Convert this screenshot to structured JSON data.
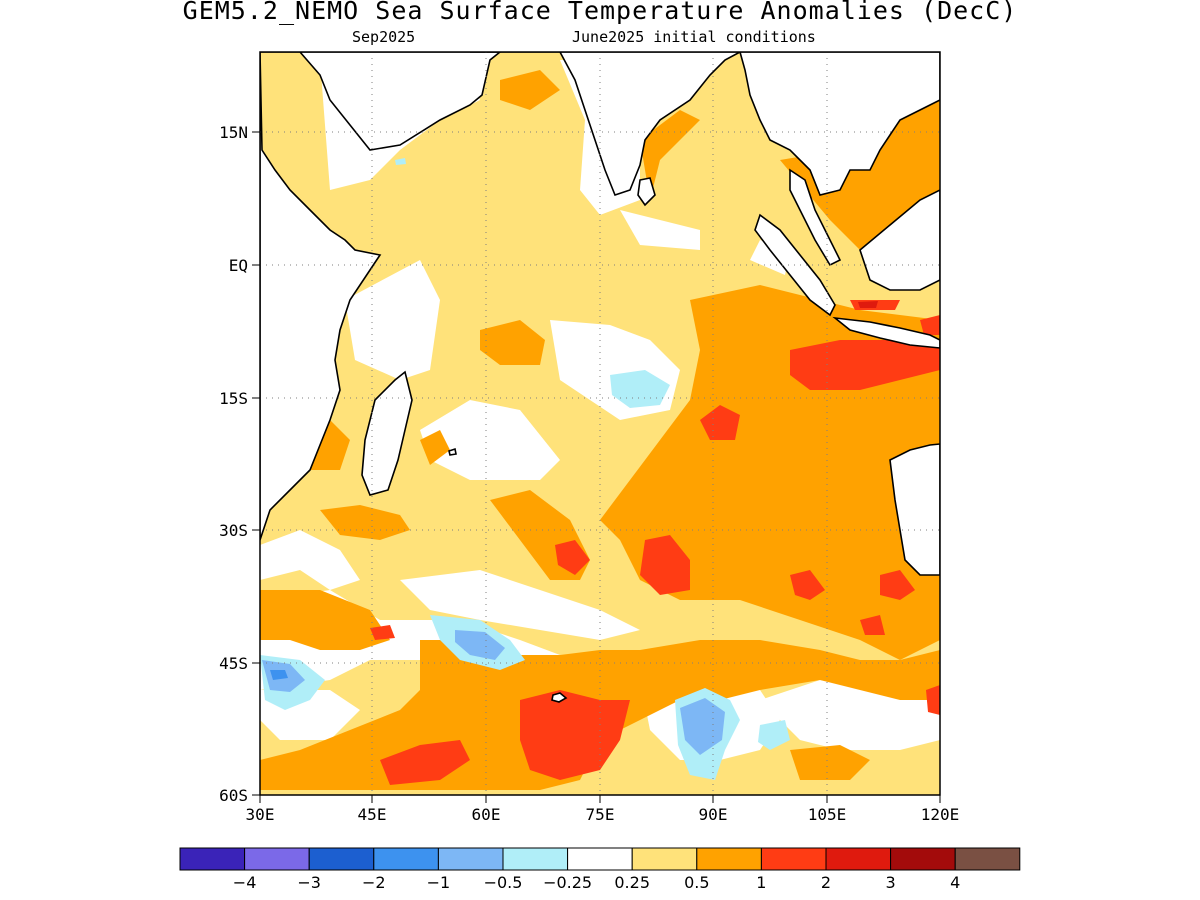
{
  "title": "GEM5.2_NEMO Sea Surface Temperature Anomalies (DecC)",
  "subtitle_left": "Sep2025",
  "subtitle_right": "June2025 initial conditions",
  "map": {
    "region": "Indian Ocean",
    "lon_range": [
      "30E",
      "120E"
    ],
    "lat_range": [
      "60S",
      "20N"
    ],
    "x_ticks": [
      "30E",
      "45E",
      "60E",
      "75E",
      "90E",
      "105E",
      "120E"
    ],
    "y_ticks": [
      "15N",
      "EQ",
      "15S",
      "30S",
      "45S",
      "60S"
    ],
    "gridlines": "dotted"
  },
  "colorbar": {
    "colors": [
      "#3a23b8",
      "#7b69e8",
      "#1c5fd0",
      "#3d92ef",
      "#7db7f5",
      "#b0eef8",
      "#ffffff",
      "#ffe27a",
      "#ffa200",
      "#ff3c14",
      "#df1a0e",
      "#a30b0b",
      "#7a5043"
    ],
    "labels": [
      "−4",
      "−3",
      "−2",
      "−1",
      "−0.5",
      "−0.25",
      "0.25",
      "0.5",
      "1",
      "2",
      "3",
      "4"
    ]
  }
}
